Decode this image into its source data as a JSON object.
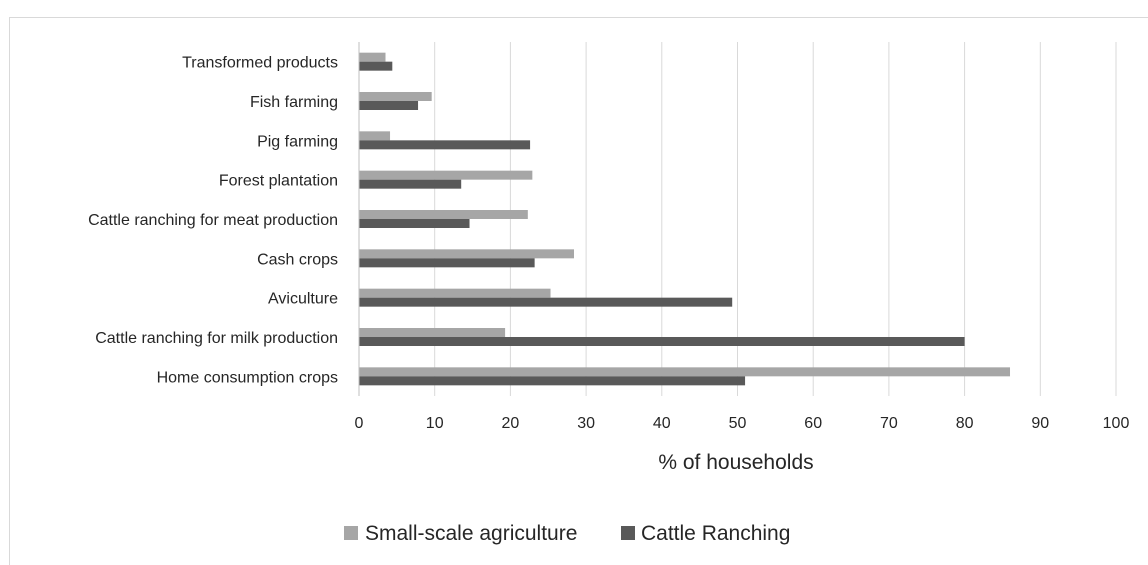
{
  "chart_data": {
    "type": "bar",
    "orientation": "horizontal",
    "categories": [
      "Home consumption crops",
      "Cattle ranching for milk production",
      "Aviculture",
      "Cash crops",
      "Cattle ranching for meat production",
      "Forest plantation",
      "Pig farming",
      "Fish farming",
      "Transformed products"
    ],
    "series": [
      {
        "name": "Small-scale agriculture",
        "color": "#a6a6a6",
        "values": [
          86,
          19.3,
          25.3,
          28.4,
          22.3,
          22.9,
          4.1,
          9.6,
          3.5
        ]
      },
      {
        "name": "Cattle Ranching",
        "color": "#595959",
        "values": [
          51,
          80,
          49.3,
          23.2,
          14.6,
          13.5,
          22.6,
          7.8,
          4.4
        ]
      }
    ],
    "xlabel": "% of households",
    "ylabel": "",
    "xlim": [
      0,
      100
    ],
    "xticks": [
      "0",
      "10",
      "20",
      "30",
      "40",
      "50",
      "60",
      "70",
      "80",
      "90",
      "100"
    ],
    "grid": "vertical",
    "legend_position": "bottom"
  }
}
